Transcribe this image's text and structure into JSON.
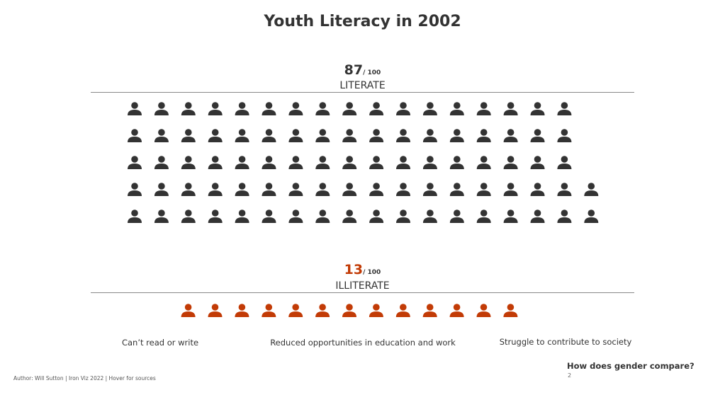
{
  "title": "Youth Literacy in 2002",
  "chart_data": {
    "type": "pictogram",
    "title": "Youth Literacy in 2002",
    "total": 100,
    "series": [
      {
        "name": "LITERATE",
        "value": 87,
        "color": "#333333",
        "rows": [
          17,
          17,
          17,
          18,
          18
        ]
      },
      {
        "name": "ILLITERATE",
        "value": 13,
        "color": "#c23b06",
        "rows": [
          13
        ]
      }
    ]
  },
  "literate": {
    "value": "87",
    "of": "/ 100",
    "label": "LITERATE"
  },
  "illiterate": {
    "value": "13",
    "of": "/ 100",
    "label": "ILLITERATE"
  },
  "captions": [
    "Can’t read or write",
    "Reduced opportunities in education and work",
    "Struggle to contribute to society"
  ],
  "footer": {
    "author": "Author: Will Sutton | Iron Viz 2022 | Hover for sources",
    "next": "How does gender compare?",
    "page": "2"
  }
}
